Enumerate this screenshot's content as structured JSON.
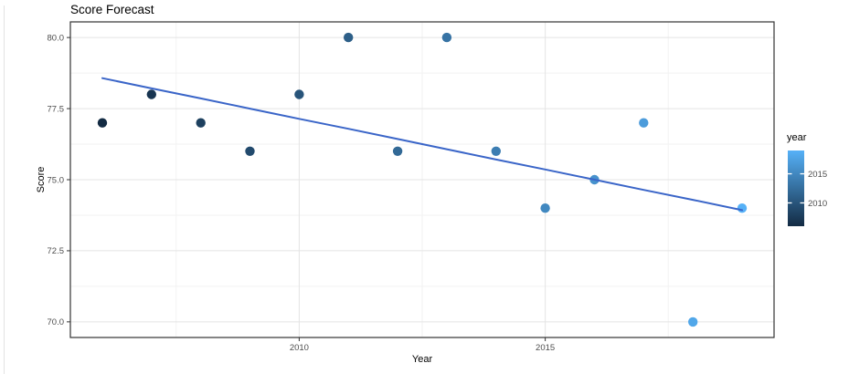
{
  "window": {
    "background": "#ffffff",
    "pane_divider_color": "#e2e2e2"
  },
  "chart_data": {
    "type": "scatter",
    "title": "Score Forecast",
    "xlabel": "Year",
    "ylabel": "Score",
    "xlim": [
      2005.35,
      2019.65
    ],
    "ylim": [
      69.45,
      80.55
    ],
    "x_ticks": {
      "major": [
        2010,
        2015
      ],
      "labels": [
        "2010",
        "2015"
      ],
      "minor": [
        2007.5,
        2012.5,
        2017.5
      ]
    },
    "y_ticks": {
      "major": [
        80.0,
        77.5,
        75.0,
        72.5,
        70.0
      ],
      "labels": [
        "80.0",
        "77.5",
        "75.0",
        "72.5",
        "70.0"
      ],
      "minor": [
        78.75,
        76.25,
        73.75,
        71.25
      ]
    },
    "grid": {
      "enabled": true,
      "major_color": "#e4e4e4",
      "minor_color": "#f2f2f2"
    },
    "panel": {
      "background": "#ffffff",
      "border_color": "#333333"
    },
    "axis": {
      "tick_color": "#333333",
      "tick_label_color": "#4d4d4d"
    },
    "series": [
      {
        "name": "score",
        "x": [
          2006,
          2007,
          2008,
          2009,
          2010,
          2011,
          2012,
          2013,
          2014,
          2015,
          2016,
          2017,
          2018,
          2019
        ],
        "y": [
          77,
          78,
          77,
          76,
          78,
          80,
          76,
          80,
          76,
          74,
          75,
          77,
          70,
          74
        ]
      }
    ],
    "trend": {
      "name": "smooth-fit",
      "color": "#3a65c8",
      "x": [
        2006,
        2007,
        2008,
        2009,
        2010,
        2011,
        2012,
        2013,
        2014,
        2015,
        2016,
        2017,
        2018,
        2019
      ],
      "y": [
        78.57,
        78.21,
        77.86,
        77.5,
        77.14,
        76.79,
        76.43,
        76.07,
        75.71,
        75.36,
        75.0,
        74.64,
        74.29,
        73.93
      ]
    },
    "color_scale": {
      "low": "#132B43",
      "high": "#56B1F7",
      "domain": [
        2006,
        2019
      ]
    },
    "legend": {
      "title": "year",
      "position": "right",
      "tick_values": [
        2015,
        2010
      ],
      "tick_labels": [
        "2015",
        "2010"
      ]
    }
  }
}
